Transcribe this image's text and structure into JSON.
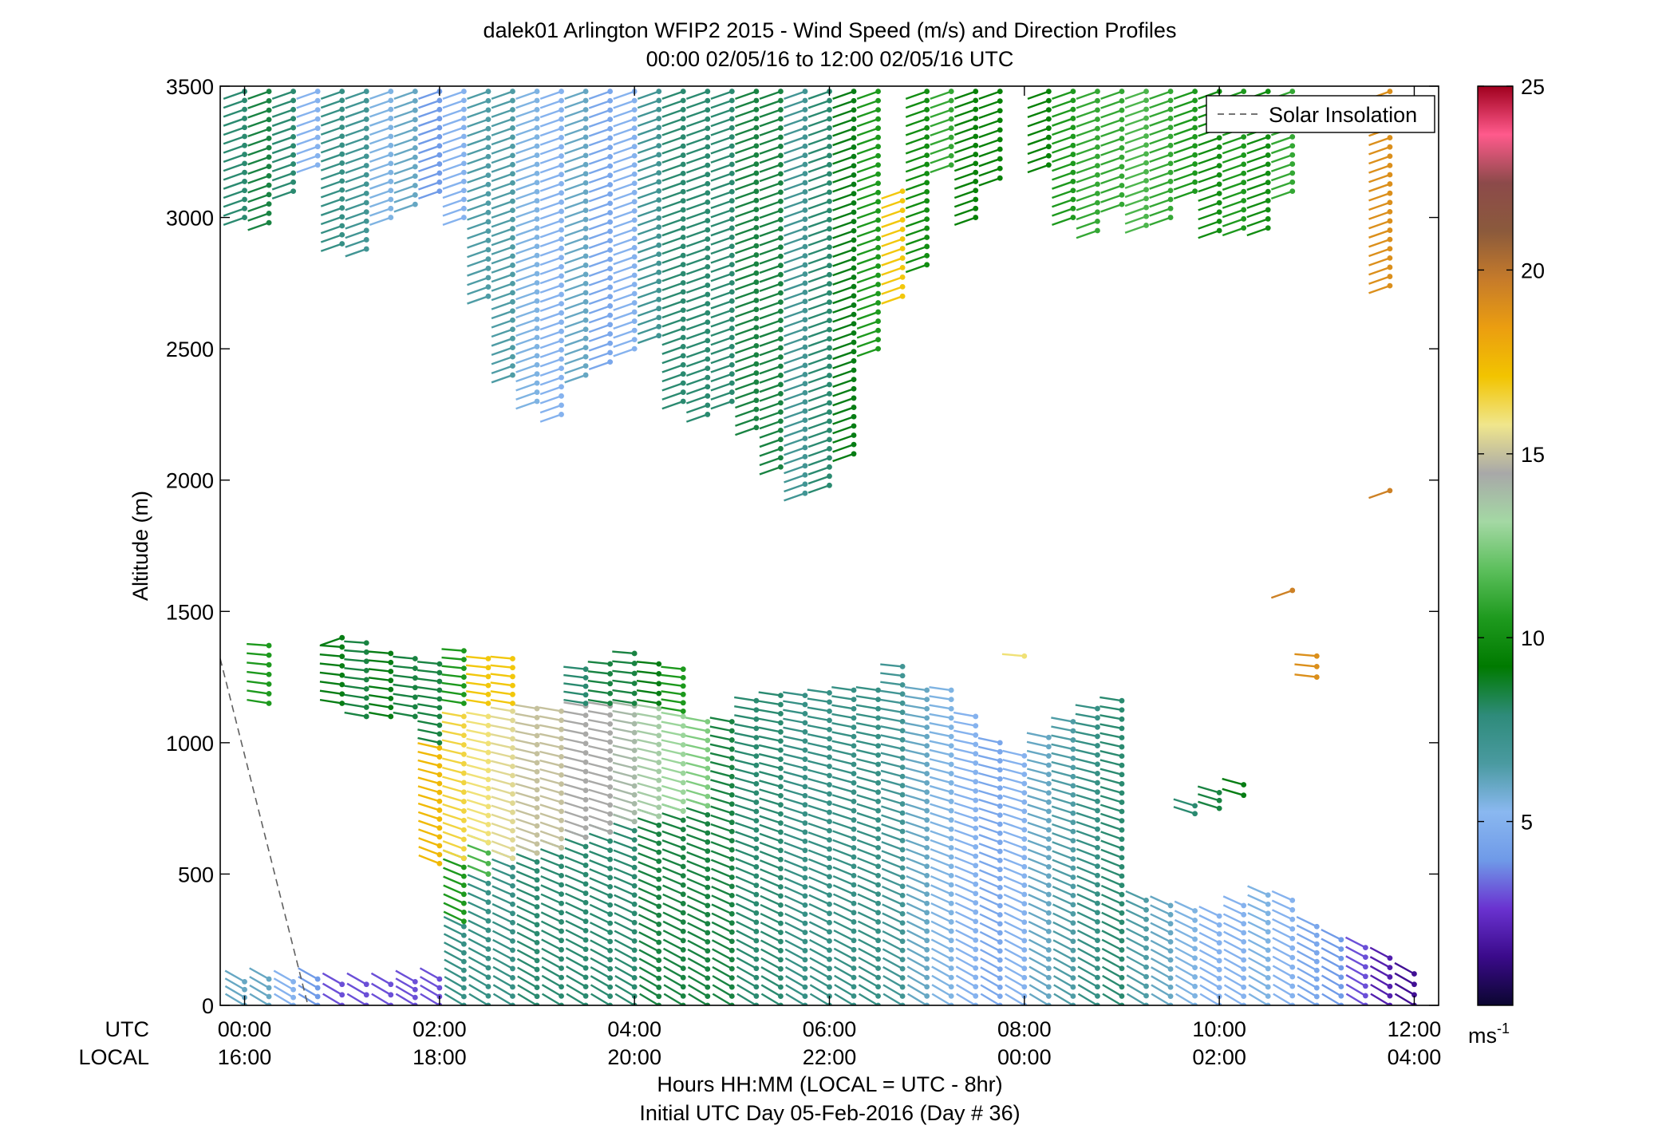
{
  "chart_data": {
    "type": "scatter",
    "title_line1": "dalek01 Arlington WFIP2 2015 - Wind Speed (m/s) and Direction Profiles",
    "title_line2": "00:00 02/05/16 to 12:00 02/05/16  UTC",
    "ylabel": "Altitude (m)",
    "xlabel_line1": "Hours HH:MM  (LOCAL = UTC - 8hr)",
    "xlabel_line2": "Initial UTC Day 05-Feb-2016 (Day # 36)",
    "xlim": [
      -0.25,
      12.25
    ],
    "ylim": [
      0,
      3500
    ],
    "y_ticks": [
      0,
      500,
      1000,
      1500,
      2000,
      2500,
      3000,
      3500
    ],
    "utc_row_label": "UTC",
    "local_row_label": "LOCAL",
    "x_ticks": [
      {
        "x": 0,
        "utc": "00:00",
        "local": "16:00"
      },
      {
        "x": 2,
        "utc": "02:00",
        "local": "18:00"
      },
      {
        "x": 4,
        "utc": "04:00",
        "local": "20:00"
      },
      {
        "x": 6,
        "utc": "06:00",
        "local": "22:00"
      },
      {
        "x": 8,
        "utc": "08:00",
        "local": "00:00"
      },
      {
        "x": 10,
        "utc": "10:00",
        "local": "02:00"
      },
      {
        "x": 12,
        "utc": "12:00",
        "local": "04:00"
      }
    ],
    "legend": {
      "label": "Solar Insolation",
      "position": "top-right"
    },
    "colorbar": {
      "min": 0,
      "max": 25,
      "ticks": [
        5,
        10,
        15,
        20,
        25
      ],
      "unit_label": "ms",
      "unit_superscript": "-1",
      "colors": [
        "#0b0630",
        "#3a0a8a",
        "#6a32d0",
        "#6f9ae8",
        "#8ab8f0",
        "#4a9aa0",
        "#2e8b7a",
        "#007a00",
        "#1e9a1e",
        "#5cbf5c",
        "#a4d8a4",
        "#a8a8a8",
        "#f0e68c",
        "#f2c400",
        "#eb9e10",
        "#c67b2a",
        "#8b5a3c",
        "#8c4a4a",
        "#ff5a8c",
        "#a0001e"
      ]
    },
    "solar_insolation": {
      "x": [
        -0.25,
        0.65
      ],
      "y": [
        1320,
        0
      ]
    },
    "profiles": [
      {
        "t": 0.0,
        "blocks": [
          [
            0,
            90,
            6
          ],
          [
            3000,
            3480,
            8
          ]
        ]
      },
      {
        "t": 0.25,
        "blocks": [
          [
            0,
            100,
            6
          ],
          [
            1150,
            1370,
            10.5
          ],
          [
            2980,
            3480,
            8.5
          ]
        ]
      },
      {
        "t": 0.5,
        "blocks": [
          [
            0,
            90,
            5
          ],
          [
            3100,
            3480,
            8
          ]
        ]
      },
      {
        "t": 0.75,
        "blocks": [
          [
            0,
            100,
            4
          ],
          [
            3200,
            3480,
            5
          ]
        ]
      },
      {
        "t": 1.0,
        "blocks": [
          [
            0,
            80,
            3
          ],
          [
            1150,
            1400,
            9
          ],
          [
            2900,
            3480,
            7.5
          ]
        ]
      },
      {
        "t": 1.25,
        "blocks": [
          [
            0,
            80,
            3
          ],
          [
            1100,
            1380,
            8.5
          ],
          [
            2880,
            3480,
            7
          ]
        ]
      },
      {
        "t": 1.5,
        "blocks": [
          [
            0,
            80,
            3
          ],
          [
            1100,
            1340,
            9
          ],
          [
            3000,
            3480,
            5.5
          ]
        ]
      },
      {
        "t": 1.75,
        "blocks": [
          [
            0,
            90,
            3
          ],
          [
            1100,
            1320,
            8.5
          ],
          [
            3050,
            3480,
            6
          ]
        ]
      },
      {
        "t": 2.0,
        "blocks": [
          [
            0,
            100,
            3
          ],
          [
            540,
            980,
            17.5
          ],
          [
            1000,
            1300,
            8.5
          ],
          [
            3100,
            3480,
            4
          ]
        ]
      },
      {
        "t": 2.25,
        "blocks": [
          [
            0,
            300,
            7.5
          ],
          [
            320,
            560,
            10.5
          ],
          [
            560,
            1100,
            16.5
          ],
          [
            1150,
            1350,
            10.5
          ],
          [
            3000,
            3480,
            5
          ]
        ]
      },
      {
        "t": 2.5,
        "blocks": [
          [
            0,
            500,
            7.5
          ],
          [
            500,
            620,
            11.5
          ],
          [
            620,
            1100,
            16
          ],
          [
            1150,
            1320,
            17
          ],
          [
            2700,
            3480,
            6.5
          ]
        ]
      },
      {
        "t": 2.75,
        "blocks": [
          [
            0,
            560,
            7.5
          ],
          [
            560,
            1120,
            15.5
          ],
          [
            1150,
            1320,
            17
          ],
          [
            2400,
            3480,
            6.5
          ]
        ]
      },
      {
        "t": 3.0,
        "blocks": [
          [
            0,
            580,
            8
          ],
          [
            580,
            1130,
            15
          ],
          [
            2300,
            3480,
            5.5
          ]
        ]
      },
      {
        "t": 3.25,
        "blocks": [
          [
            0,
            600,
            8
          ],
          [
            600,
            1120,
            15
          ],
          [
            2250,
            3480,
            5
          ]
        ]
      },
      {
        "t": 3.5,
        "blocks": [
          [
            0,
            640,
            8
          ],
          [
            640,
            1140,
            14.5
          ],
          [
            1150,
            1280,
            8
          ],
          [
            2400,
            3480,
            6
          ]
        ]
      },
      {
        "t": 3.75,
        "blocks": [
          [
            0,
            660,
            8
          ],
          [
            660,
            1140,
            14.5
          ],
          [
            1150,
            1300,
            8.5
          ],
          [
            2450,
            3480,
            4.5
          ]
        ]
      },
      {
        "t": 4.0,
        "blocks": [
          [
            0,
            700,
            8
          ],
          [
            700,
            1140,
            14
          ],
          [
            1150,
            1340,
            8.5
          ],
          [
            2500,
            3480,
            5
          ]
        ]
      },
      {
        "t": 4.25,
        "blocks": [
          [
            0,
            720,
            8.5
          ],
          [
            720,
            1130,
            13.5
          ],
          [
            1150,
            1300,
            9
          ],
          [
            2550,
            3480,
            7
          ]
        ]
      },
      {
        "t": 4.5,
        "blocks": [
          [
            0,
            740,
            8.5
          ],
          [
            740,
            1100,
            13
          ],
          [
            1120,
            1280,
            10.5
          ],
          [
            2300,
            3480,
            8
          ]
        ]
      },
      {
        "t": 4.75,
        "blocks": [
          [
            0,
            760,
            8.5
          ],
          [
            760,
            1080,
            12.5
          ],
          [
            2250,
            3480,
            8
          ]
        ]
      },
      {
        "t": 5.0,
        "blocks": [
          [
            0,
            1080,
            8.5
          ],
          [
            2300,
            3480,
            8
          ]
        ]
      },
      {
        "t": 5.25,
        "blocks": [
          [
            0,
            1160,
            8
          ],
          [
            2200,
            3480,
            8.5
          ]
        ]
      },
      {
        "t": 5.5,
        "blocks": [
          [
            0,
            1180,
            8
          ],
          [
            2050,
            3480,
            8.5
          ]
        ]
      },
      {
        "t": 5.75,
        "blocks": [
          [
            0,
            1180,
            7.5
          ],
          [
            1950,
            3480,
            7
          ]
        ]
      },
      {
        "t": 6.0,
        "blocks": [
          [
            0,
            1190,
            7.5
          ],
          [
            1980,
            3480,
            8
          ]
        ]
      },
      {
        "t": 6.25,
        "blocks": [
          [
            0,
            1200,
            7.5
          ],
          [
            2100,
            3480,
            9
          ]
        ]
      },
      {
        "t": 6.5,
        "blocks": [
          [
            0,
            1200,
            7.5
          ],
          [
            2500,
            3480,
            10.5
          ]
        ]
      },
      {
        "t": 6.75,
        "blocks": [
          [
            0,
            1290,
            7
          ],
          [
            2700,
            3100,
            17
          ]
        ]
      },
      {
        "t": 7.0,
        "blocks": [
          [
            0,
            1200,
            6
          ],
          [
            2820,
            3480,
            10
          ]
        ]
      },
      {
        "t": 7.25,
        "blocks": [
          [
            0,
            1200,
            5.5
          ],
          [
            3200,
            3480,
            11
          ]
        ]
      },
      {
        "t": 7.5,
        "blocks": [
          [
            0,
            1100,
            5
          ],
          [
            3000,
            3480,
            9.5
          ]
        ]
      },
      {
        "t": 7.75,
        "blocks": [
          [
            0,
            1000,
            4.5
          ],
          [
            3150,
            3480,
            9.5
          ]
        ]
      },
      {
        "t": 8.0,
        "blocks": [
          [
            0,
            950,
            5
          ],
          [
            1330,
            1330,
            16
          ]
        ]
      },
      {
        "t": 8.25,
        "blocks": [
          [
            0,
            1020,
            6
          ],
          [
            3200,
            3480,
            9.5
          ]
        ]
      },
      {
        "t": 8.5,
        "blocks": [
          [
            0,
            1080,
            6.5
          ],
          [
            3000,
            3480,
            10.5
          ]
        ]
      },
      {
        "t": 8.75,
        "blocks": [
          [
            0,
            1130,
            7.5
          ],
          [
            2950,
            3480,
            11
          ]
        ]
      },
      {
        "t": 9.0,
        "blocks": [
          [
            0,
            1160,
            8
          ],
          [
            3050,
            3480,
            11
          ]
        ]
      },
      {
        "t": 9.25,
        "blocks": [
          [
            0,
            400,
            6.5
          ],
          [
            2970,
            3480,
            11.5
          ]
        ]
      },
      {
        "t": 9.5,
        "blocks": [
          [
            0,
            380,
            6
          ],
          [
            3000,
            3480,
            11
          ]
        ]
      },
      {
        "t": 9.75,
        "blocks": [
          [
            0,
            360,
            5.5
          ],
          [
            730,
            760,
            8
          ],
          [
            3100,
            3480,
            10.5
          ]
        ]
      },
      {
        "t": 10.0,
        "blocks": [
          [
            0,
            340,
            5
          ],
          [
            750,
            810,
            8.5
          ],
          [
            2950,
            3480,
            10
          ]
        ]
      },
      {
        "t": 10.25,
        "blocks": [
          [
            0,
            380,
            5
          ],
          [
            800,
            840,
            9
          ],
          [
            2960,
            3480,
            10.5
          ]
        ]
      },
      {
        "t": 10.5,
        "blocks": [
          [
            0,
            420,
            5.5
          ],
          [
            2960,
            3480,
            10
          ]
        ]
      },
      {
        "t": 10.75,
        "blocks": [
          [
            0,
            400,
            5
          ],
          [
            1580,
            1580,
            19.5
          ],
          [
            3100,
            3480,
            11
          ]
        ]
      },
      {
        "t": 11.0,
        "blocks": [
          [
            0,
            300,
            4.5
          ],
          [
            1250,
            1330,
            19
          ]
        ]
      },
      {
        "t": 11.25,
        "blocks": [
          [
            0,
            250,
            4
          ]
        ]
      },
      {
        "t": 11.5,
        "blocks": [
          [
            0,
            220,
            3
          ]
        ]
      },
      {
        "t": 11.75,
        "blocks": [
          [
            0,
            180,
            2
          ],
          [
            1960,
            1960,
            19.5
          ],
          [
            2740,
            3480,
            19
          ]
        ]
      },
      {
        "t": 12.0,
        "blocks": [
          [
            0,
            120,
            1.5
          ]
        ]
      }
    ]
  }
}
